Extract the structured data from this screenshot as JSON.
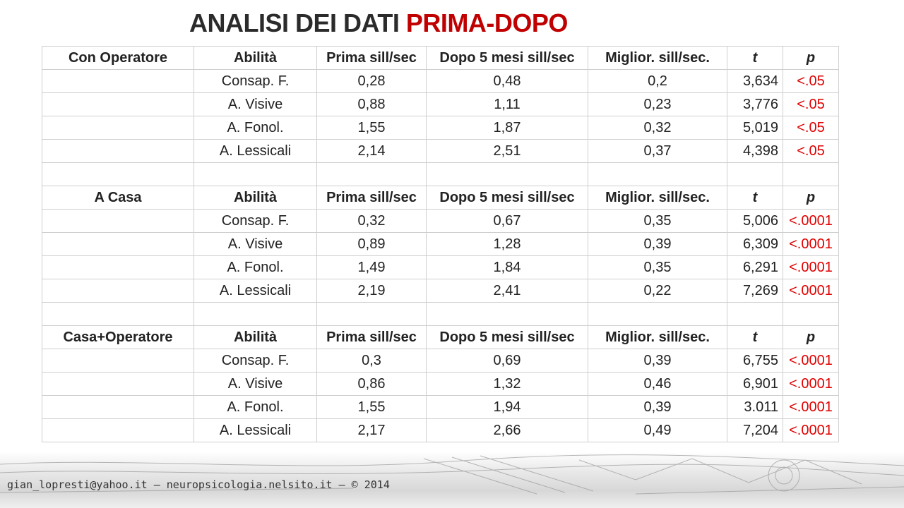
{
  "title": {
    "main": "ANALISI DEI DATI ",
    "accent": "PRIMA-DOPO"
  },
  "sections": [
    {
      "header": [
        "Con Operatore",
        "Abilità",
        "Prima sill/sec",
        "Dopo 5 mesi sill/sec",
        "Miglior. sill/sec.",
        "t",
        "p"
      ],
      "rows": [
        [
          "",
          "Consap. F.",
          "0,28",
          "0,48",
          "0,2",
          "3,634",
          "<.05"
        ],
        [
          "",
          "A. Visive",
          "0,88",
          "1,11",
          "0,23",
          "3,776",
          "<.05"
        ],
        [
          "",
          "A. Fonol.",
          "1,55",
          "1,87",
          "0,32",
          "5,019",
          "<.05"
        ],
        [
          "",
          "A. Lessicali",
          "2,14",
          "2,51",
          "0,37",
          "4,398",
          "<.05"
        ]
      ]
    },
    {
      "header": [
        "A Casa",
        "Abilità",
        "Prima sill/sec",
        "Dopo 5 mesi sill/sec",
        "Miglior. sill/sec.",
        "t",
        "p"
      ],
      "rows": [
        [
          "",
          "Consap. F.",
          "0,32",
          "0,67",
          "0,35",
          "5,006",
          "<.0001"
        ],
        [
          "",
          "A. Visive",
          "0,89",
          "1,28",
          "0,39",
          "6,309",
          "<.0001"
        ],
        [
          "",
          "A. Fonol.",
          "1,49",
          "1,84",
          "0,35",
          "6,291",
          "<.0001"
        ],
        [
          "",
          "A. Lessicali",
          "2,19",
          "2,41",
          "0,22",
          "7,269",
          "<.0001"
        ]
      ]
    },
    {
      "header": [
        "Casa+Operatore",
        "Abilità",
        "Prima sill/sec",
        "Dopo 5 mesi sill/sec",
        "Miglior. sill/sec.",
        "t",
        "p"
      ],
      "rows": [
        [
          "",
          "Consap. F.",
          "0,3",
          "0,69",
          "0,39",
          "6,755",
          "<.0001"
        ],
        [
          "",
          "A. Visive",
          "0,86",
          "1,32",
          "0,46",
          "6,901",
          "<.0001"
        ],
        [
          "",
          "A. Fonol.",
          "1,55",
          "1,94",
          "0,39",
          "3.011",
          "<.0001"
        ],
        [
          "",
          "A. Lessicali",
          "2,17",
          "2,66",
          "0,49",
          "7,204",
          "<.0001"
        ]
      ]
    }
  ],
  "colors": {
    "accent": "#c00000",
    "p_value": "#e00000",
    "grid": "#cfcfcf"
  },
  "footer": {
    "credit": "gian_lopresti@yahoo.it – neuropsicologia.nelsito.it – © 2014"
  }
}
